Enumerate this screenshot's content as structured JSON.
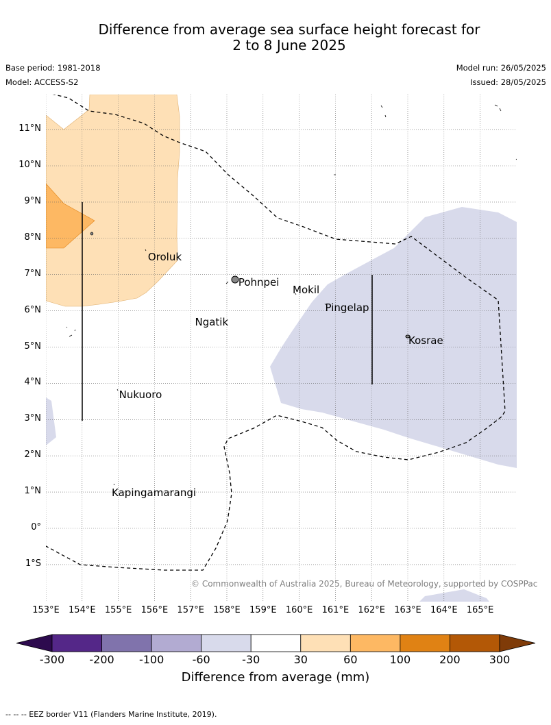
{
  "title_line1": "Difference from average sea surface height forecast for",
  "title_line2": "2 to 8 June 2025",
  "base_period": "Base period: 1981-2018",
  "model": "Model: ACCESS-S2",
  "model_run": "Model run: 26/05/2025",
  "issued": "Issued: 28/05/2025",
  "copyright": "© Commonwealth of Australia 2025, Bureau of Meteorology, supported by COSPPac",
  "footnote": "--  --  -- EEZ border V11 (Flanders Marine Institute, 2019).",
  "longitude_ticks": [
    "153°E",
    "154°E",
    "155°E",
    "156°E",
    "157°E",
    "158°E",
    "159°E",
    "160°E",
    "161°E",
    "162°E",
    "163°E",
    "164°E",
    "165°E"
  ],
  "latitude_ticks": [
    "11°N",
    "10°N",
    "9°N",
    "8°N",
    "7°N",
    "6°N",
    "5°N",
    "4°N",
    "3°N",
    "2°N",
    "1°N",
    "0°",
    "1°S"
  ],
  "places": [
    {
      "name": "Oroluk",
      "lon": 155.8,
      "lat": 7.6
    },
    {
      "name": "Pohnpei",
      "lon": 158.3,
      "lat": 6.9
    },
    {
      "name": "Mokil",
      "lon": 159.8,
      "lat": 6.7
    },
    {
      "name": "Pingelap",
      "lon": 160.7,
      "lat": 6.2
    },
    {
      "name": "Ngatik",
      "lon": 157.1,
      "lat": 5.8
    },
    {
      "name": "Kosrae",
      "lon": 163.0,
      "lat": 5.3
    },
    {
      "name": "Nukuoro",
      "lon": 155.0,
      "lat": 3.8
    },
    {
      "name": "Kapingamarangi",
      "lon": 154.8,
      "lat": 1.1
    }
  ],
  "colorbar": {
    "title": "Difference from average (mm)",
    "labels": [
      "-300",
      "-200",
      "-100",
      "-60",
      "-30",
      "30",
      "60",
      "100",
      "200",
      "300"
    ],
    "colors": [
      "#2d0a4e",
      "#542788",
      "#8073ac",
      "#b2abd2",
      "#d8daeb",
      "#ffffff",
      "#fee0b6",
      "#fdb863",
      "#e08214",
      "#b35806",
      "#7f3b08"
    ]
  },
  "anomaly_colors": {
    "pos_30_60": "#fee0b6",
    "pos_60_100": "#fdb863",
    "neg_30_60": "#d8daeb"
  }
}
